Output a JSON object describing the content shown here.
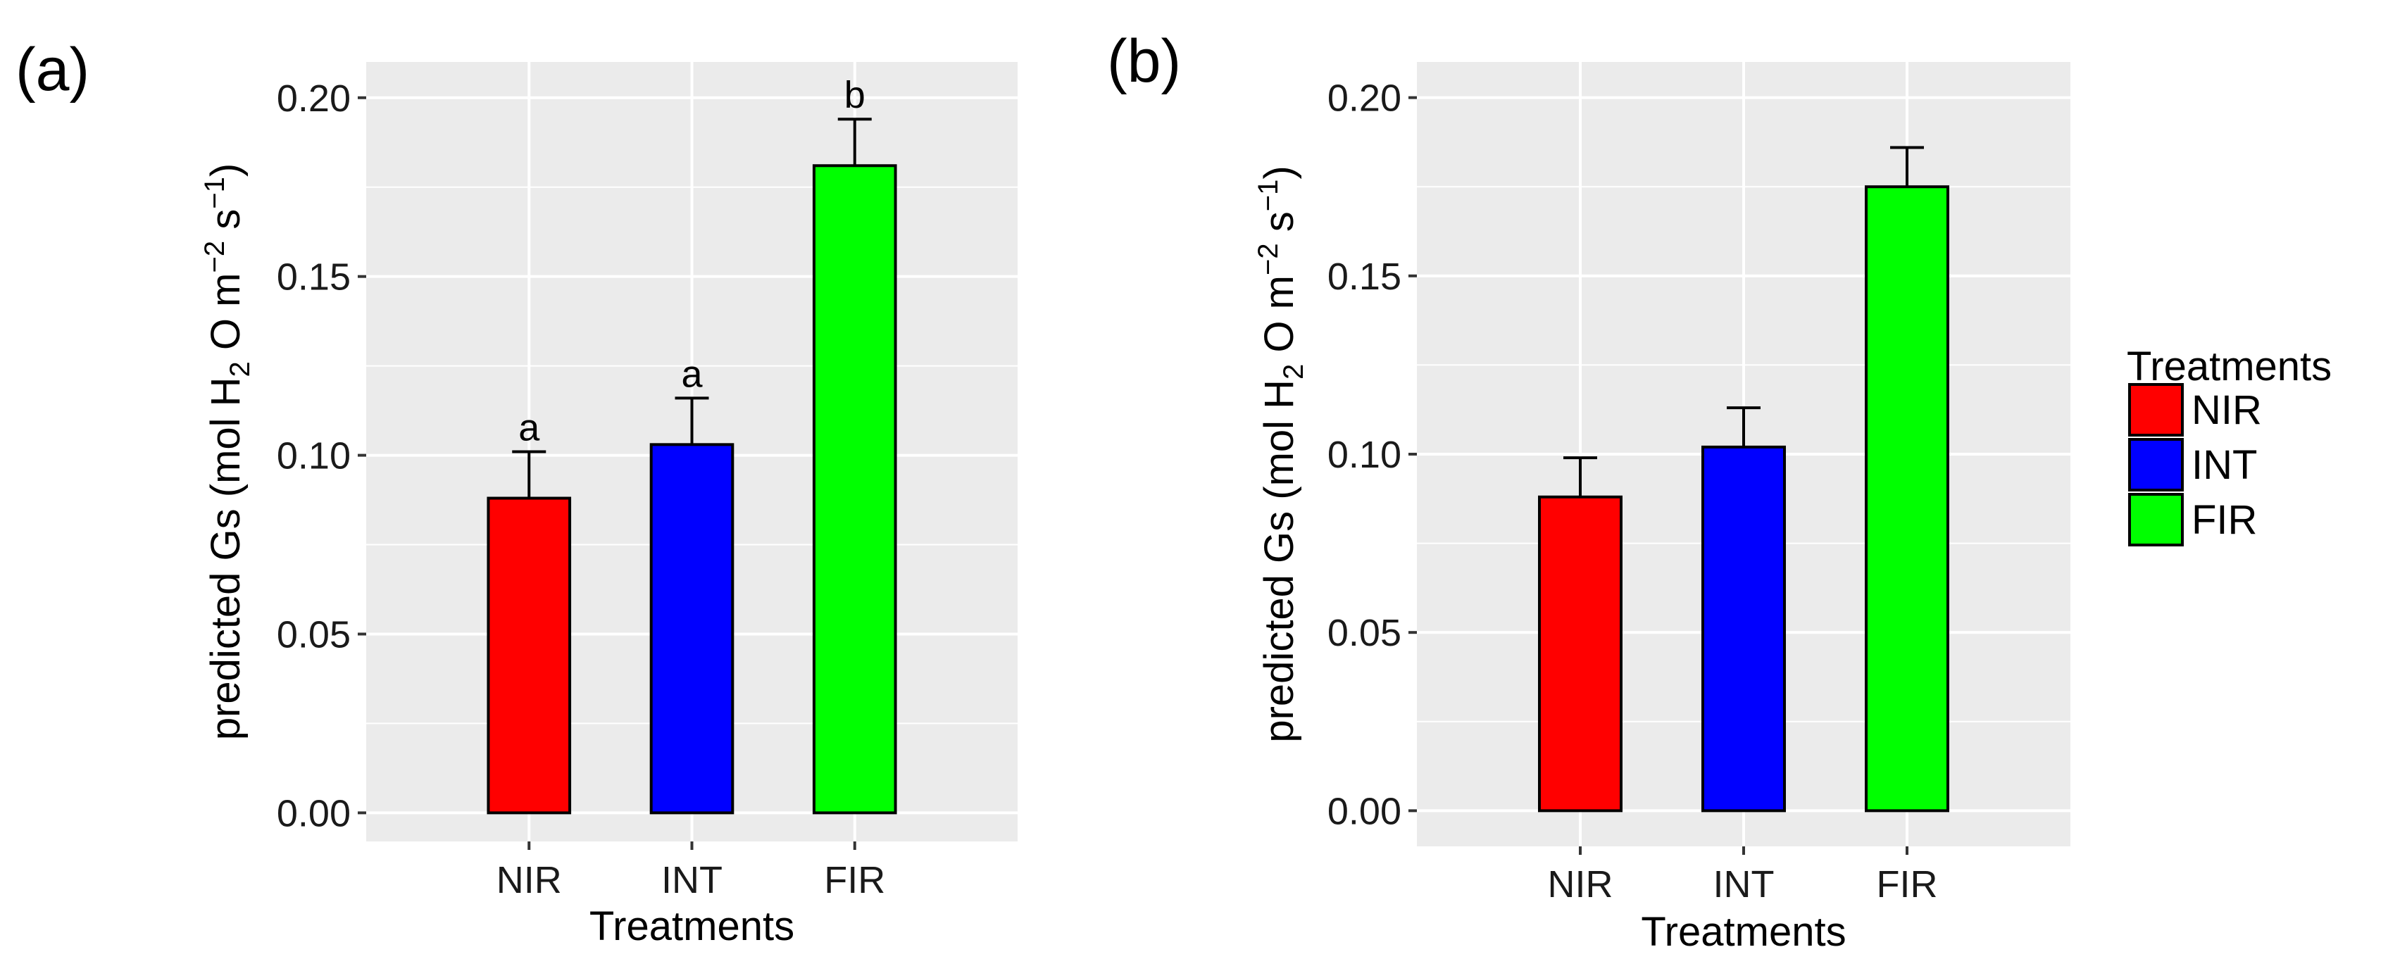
{
  "figure": {
    "colors": {
      "panel_background": "#EBEBEB",
      "grid": "#FFFFFF",
      "bar_outline": "#000000"
    },
    "legend": {
      "title": "Treatments",
      "placement": "right",
      "items": [
        {
          "label": "NIR",
          "color": "#FF0000"
        },
        {
          "label": "INT",
          "color": "#0000FF"
        },
        {
          "label": "FIR",
          "color": "#00FF00"
        }
      ]
    }
  },
  "chart_data": [
    {
      "panel_label": "(a)",
      "type": "bar",
      "xlabel": "Treatments",
      "ylabel": {
        "pre": "predicted Gs (mol H",
        "sub": "2",
        "mid": " O m",
        "sup1": "−2",
        "mid2": " s",
        "sup2": "−1",
        "post": ")"
      },
      "ylim": [
        -0.008,
        0.21
      ],
      "yticks": [
        0.0,
        0.05,
        0.1,
        0.15,
        0.2
      ],
      "ytick_labels": [
        "0.00",
        "0.05",
        "0.10",
        "0.15",
        "0.20"
      ],
      "grid": true,
      "categories": [
        "NIR",
        "INT",
        "FIR"
      ],
      "values": [
        0.088,
        0.103,
        0.181
      ],
      "errors": [
        0.013,
        0.013,
        0.013
      ],
      "colors": [
        "#FF0000",
        "#0000FF",
        "#00FF00"
      ],
      "annotations": [
        "a",
        "a",
        "b"
      ]
    },
    {
      "panel_label": "(b)",
      "type": "bar",
      "xlabel": "Treatments",
      "ylabel": {
        "pre": "predicted Gs (mol H",
        "sub": "2",
        "mid": " O m",
        "sup1": "−2",
        "mid2": " s",
        "sup2": "−1",
        "post": ")"
      },
      "ylim": [
        -0.01,
        0.21
      ],
      "yticks": [
        0.0,
        0.05,
        0.1,
        0.15,
        0.2
      ],
      "ytick_labels": [
        "0.00",
        "0.05",
        "0.10",
        "0.15",
        "0.20"
      ],
      "grid": true,
      "categories": [
        "NIR",
        "INT",
        "FIR"
      ],
      "values": [
        0.088,
        0.102,
        0.175
      ],
      "errors": [
        0.011,
        0.011,
        0.011
      ],
      "colors": [
        "#FF0000",
        "#0000FF",
        "#00FF00"
      ],
      "annotations": []
    }
  ]
}
